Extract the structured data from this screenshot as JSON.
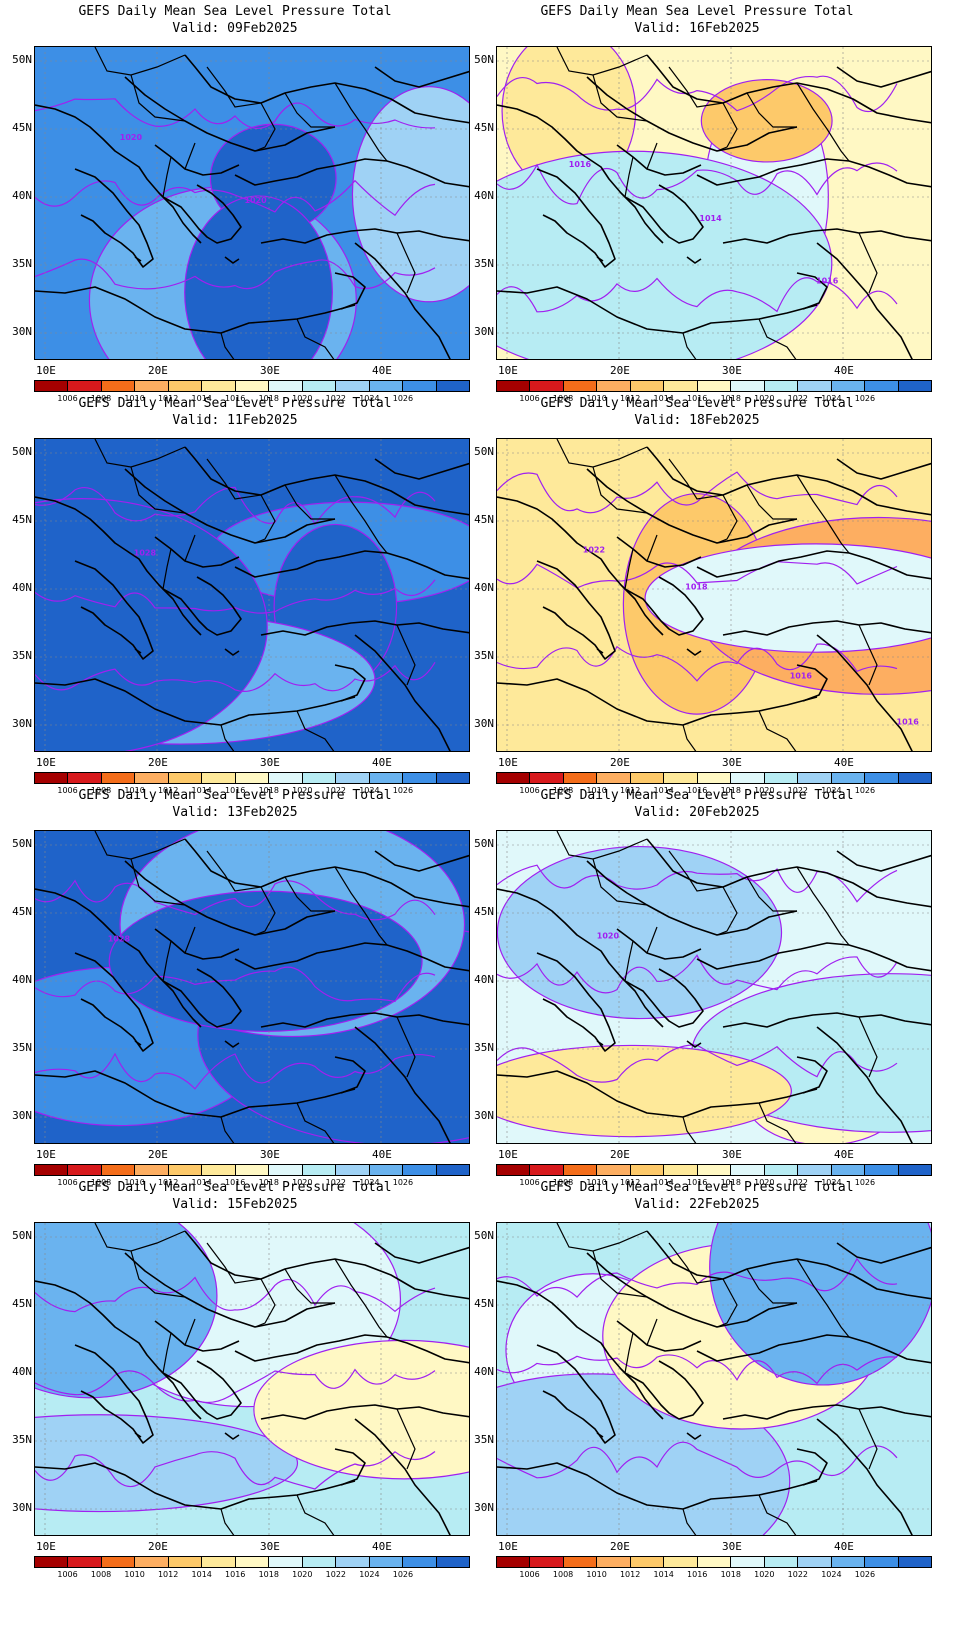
{
  "panels": [
    {
      "title": "GEFS Daily Mean Sea Level Pressure Total",
      "valid": "Valid: 09Feb2025",
      "contour_labels": [
        "1020",
        "1020"
      ],
      "palette_index": 11
    },
    {
      "title": "GEFS Daily Mean Sea Level Pressure Total",
      "valid": "Valid: 16Feb2025",
      "contour_labels": [
        "1016",
        "1014",
        "1016"
      ],
      "palette_index": 6
    },
    {
      "title": "GEFS Daily Mean Sea Level Pressure Total",
      "valid": "Valid: 11Feb2025",
      "contour_labels": [
        "1028"
      ],
      "palette_index": 12
    },
    {
      "title": "GEFS Daily Mean Sea Level Pressure Total",
      "valid": "Valid: 18Feb2025",
      "contour_labels": [
        "1022",
        "1018",
        "1016",
        "1016"
      ],
      "palette_index": 5
    },
    {
      "title": "GEFS Daily Mean Sea Level Pressure Total",
      "valid": "Valid: 13Feb2025",
      "contour_labels": [
        "1028"
      ],
      "palette_index": 12
    },
    {
      "title": "GEFS Daily Mean Sea Level Pressure Total",
      "valid": "Valid: 20Feb2025",
      "contour_labels": [
        "1020"
      ],
      "palette_index": 7
    },
    {
      "title": "GEFS Daily Mean Sea Level Pressure Total",
      "valid": "Valid: 15Feb2025",
      "contour_labels": [],
      "palette_index": 8
    },
    {
      "title": "GEFS Daily Mean Sea Level Pressure Total",
      "valid": "Valid: 22Feb2025",
      "contour_labels": [],
      "palette_index": 8
    }
  ],
  "axes": {
    "lat_labels": [
      "50N",
      "45N",
      "40N",
      "35N",
      "30N"
    ],
    "lon_labels": [
      "10E",
      "20E",
      "30E",
      "40E"
    ]
  },
  "colorbar": {
    "labels": [
      "1006",
      "1008",
      "1010",
      "1012",
      "1014",
      "1016",
      "1018",
      "1020",
      "1022",
      "1024",
      "1026"
    ],
    "colors": [
      "#a50000",
      "#d7191c",
      "#f46d1a",
      "#fdae61",
      "#fdc96a",
      "#fee99a",
      "#fff8c4",
      "#e0f8fa",
      "#b7ecf3",
      "#9fd2f5",
      "#6ab3ef",
      "#3d8fe6",
      "#1f63c9"
    ]
  },
  "contour_color": "#a020f0"
}
